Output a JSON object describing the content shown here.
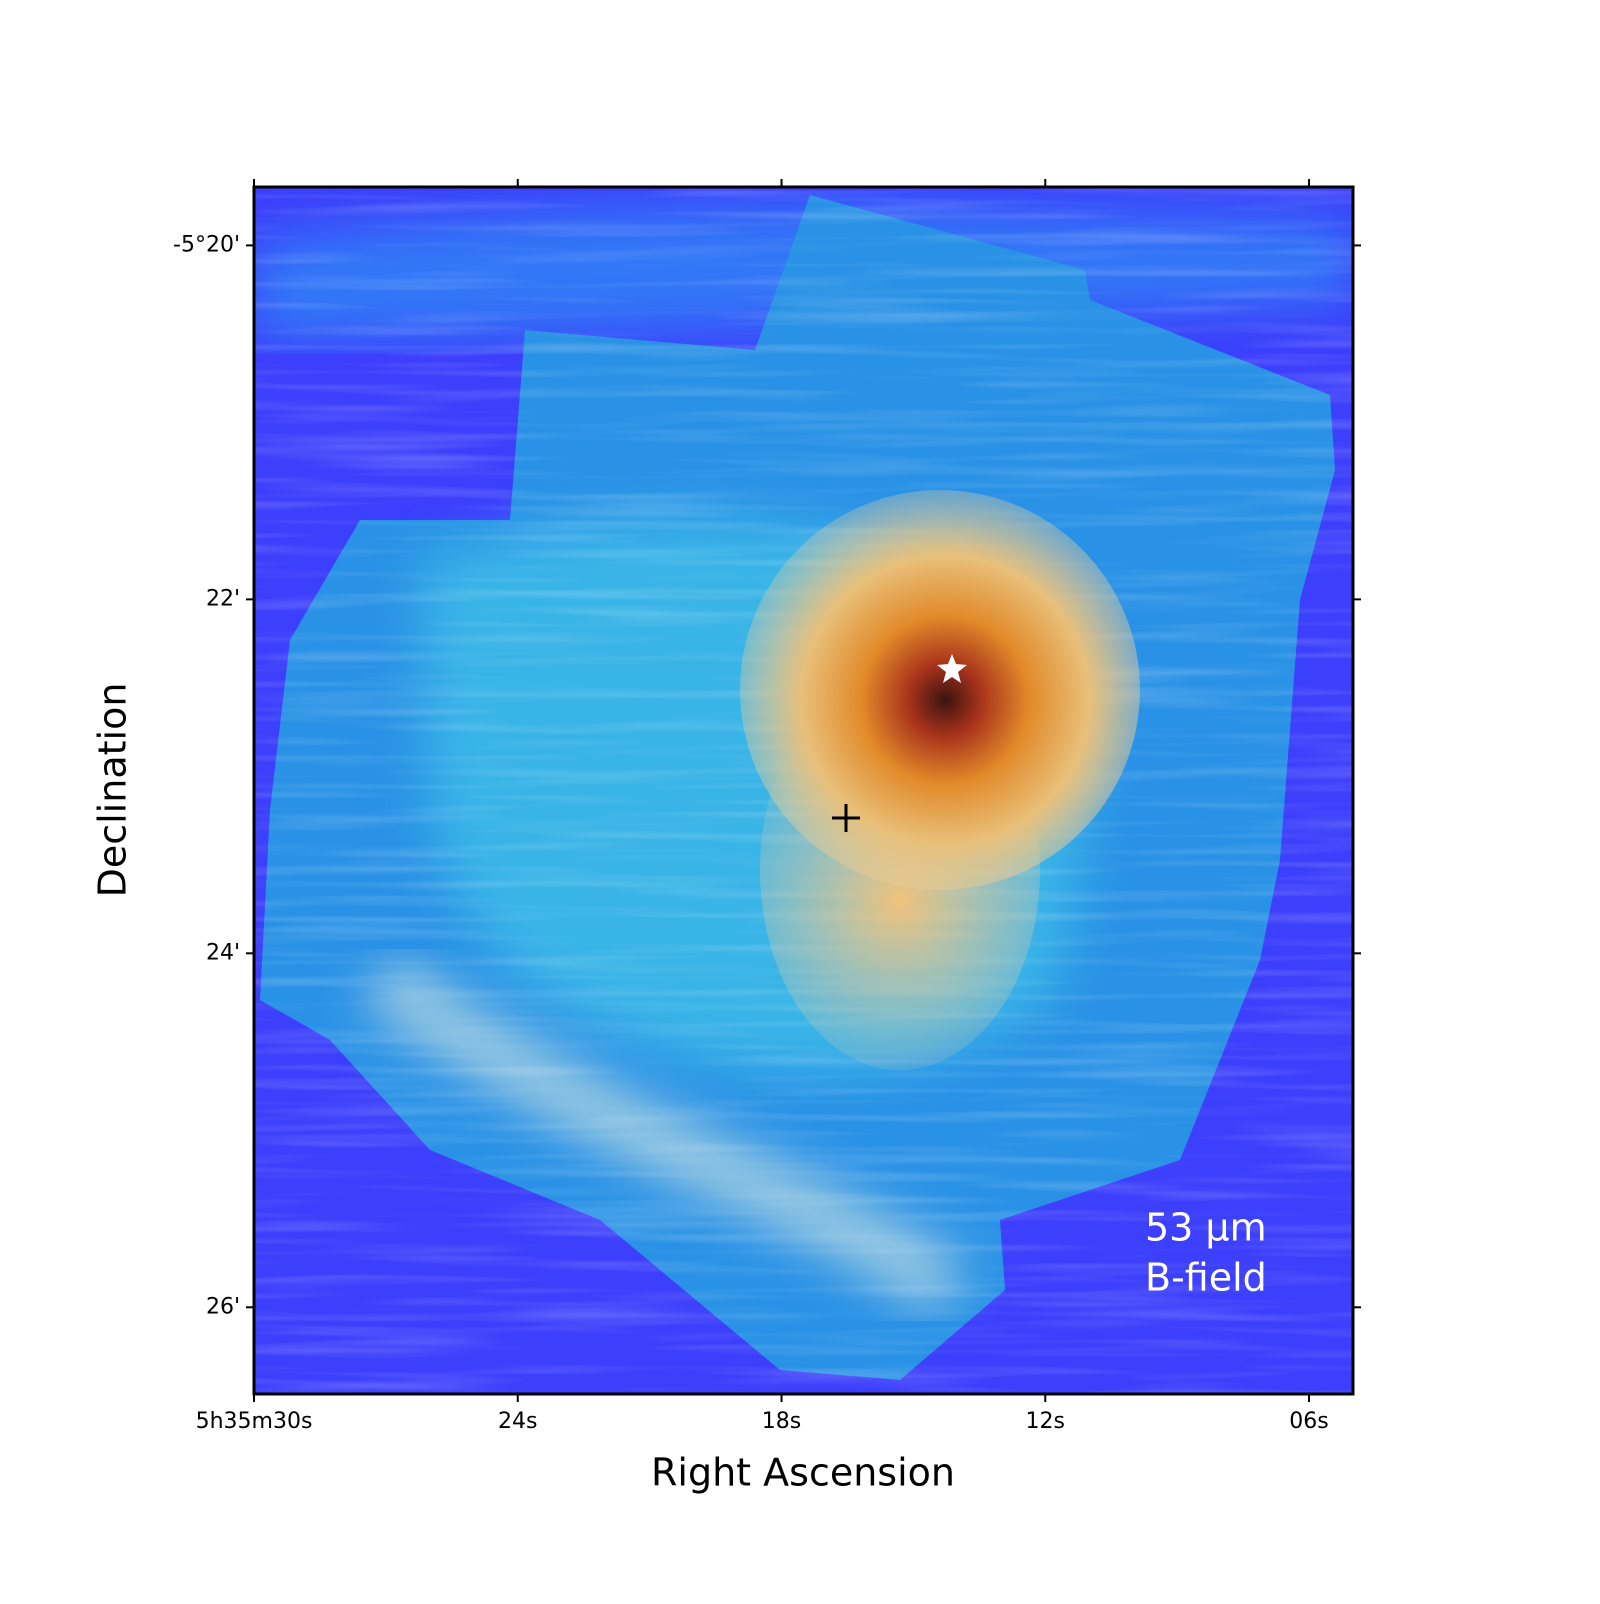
{
  "chart_data": {
    "type": "image",
    "xlabel": "Right Ascension",
    "ylabel": "Declination",
    "annotations": [
      "53 μm",
      "B-field"
    ],
    "xlim": [
      30,
      5
    ],
    "xticks": [
      {
        "value": 30,
        "label": "5h35m30s"
      },
      {
        "value": 24,
        "label": "24s"
      },
      {
        "value": 18,
        "label": "18s"
      },
      {
        "value": 12,
        "label": "12s"
      },
      {
        "value": 6,
        "label": "06s"
      }
    ],
    "ylim": [
      -319.67,
      -326.49
    ],
    "yticks": [
      {
        "value": -320,
        "label": "-5°20'"
      },
      {
        "value": -322,
        "label": "22'"
      },
      {
        "value": -324,
        "label": "24'"
      },
      {
        "value": -326,
        "label": "26'"
      }
    ]
  }
}
